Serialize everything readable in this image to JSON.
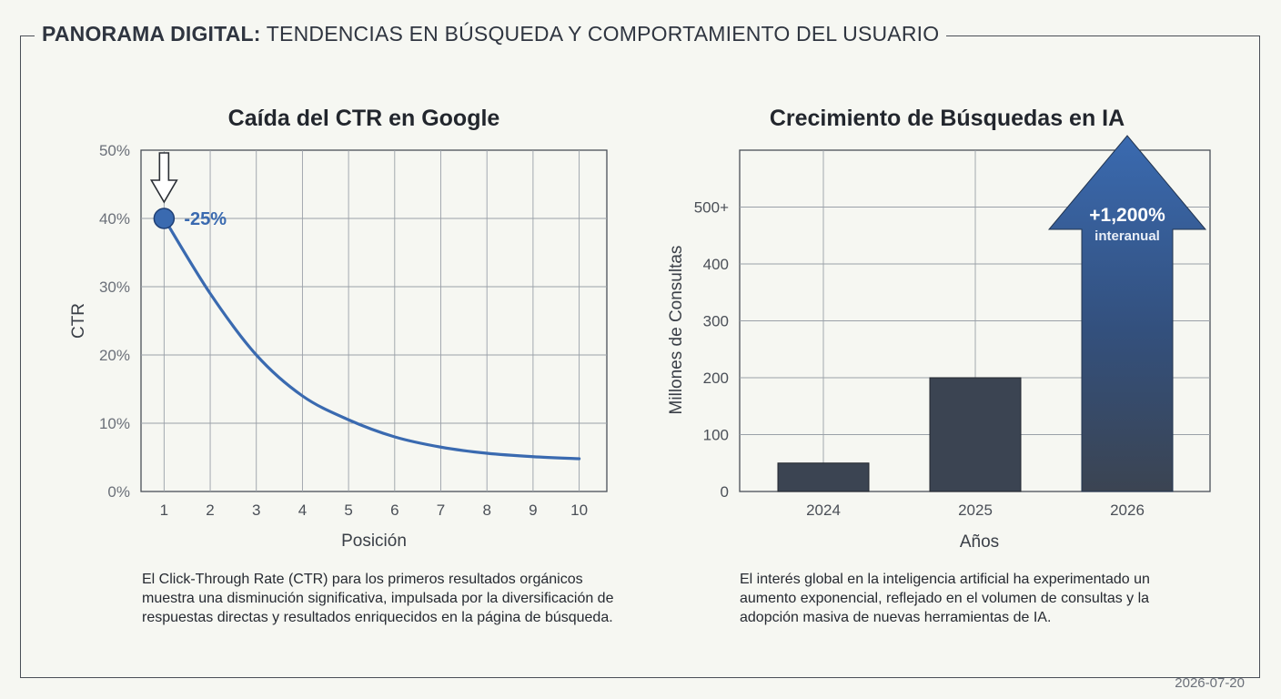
{
  "header": {
    "title_strong": "PANORAMA DIGITAL:",
    "title_rest": " TENDENCIAS EN BÚSQUEDA Y COMPORTAMIENTO DEL USUARIO"
  },
  "footer": {
    "date": "2026-07-20"
  },
  "chart_data": [
    {
      "type": "line",
      "title": "Caída del CTR en Google",
      "xlabel": "Posición",
      "ylabel": "CTR",
      "x": [
        1,
        2,
        3,
        4,
        5,
        6,
        7,
        8,
        9,
        10
      ],
      "series": [
        {
          "values": [
            40,
            29,
            20,
            14,
            10.5,
            8,
            6.5,
            5.6,
            5.1,
            4.8
          ]
        }
      ],
      "xlim": [
        0.5,
        10.6
      ],
      "ylim": [
        0,
        50
      ],
      "y_ticks": [
        0,
        10,
        20,
        30,
        40,
        50
      ],
      "y_tick_labels": [
        "0%",
        "10%",
        "20%",
        "30%",
        "40%",
        "50%"
      ],
      "grid": true,
      "highlight_point": {
        "x": 1,
        "y": 40
      },
      "annotation": "-25%",
      "color": "#3a6ab0",
      "description": "El Click-Through Rate (CTR) para los primeros resultados orgánicos muestra una disminución significativa, impulsada por la diversificación de respuestas directas y resultados enriquecidos en la página de búsqueda."
    },
    {
      "type": "bar",
      "title": "Crecimiento de Búsquedas en IA",
      "xlabel": "Años",
      "ylabel": "Millones de Consultas",
      "categories": [
        "2024",
        "2025",
        "2026"
      ],
      "values": [
        50,
        200,
        500
      ],
      "ylim": [
        0,
        600
      ],
      "y_ticks": [
        0,
        100,
        200,
        300,
        400,
        500
      ],
      "y_tick_labels": [
        "0",
        "100",
        "200",
        "300",
        "400",
        "500+"
      ],
      "grid": true,
      "bar_color": "#3b4452",
      "highlight_color": "#3a6ab0",
      "annotation": "+1,200%",
      "annotation_sub": "interanual",
      "description": "El interés global en la inteligencia artificial ha experimentado un aumento exponencial, reflejado en el volumen de consultas y la adopción masiva de nuevas herramientas de IA."
    }
  ]
}
